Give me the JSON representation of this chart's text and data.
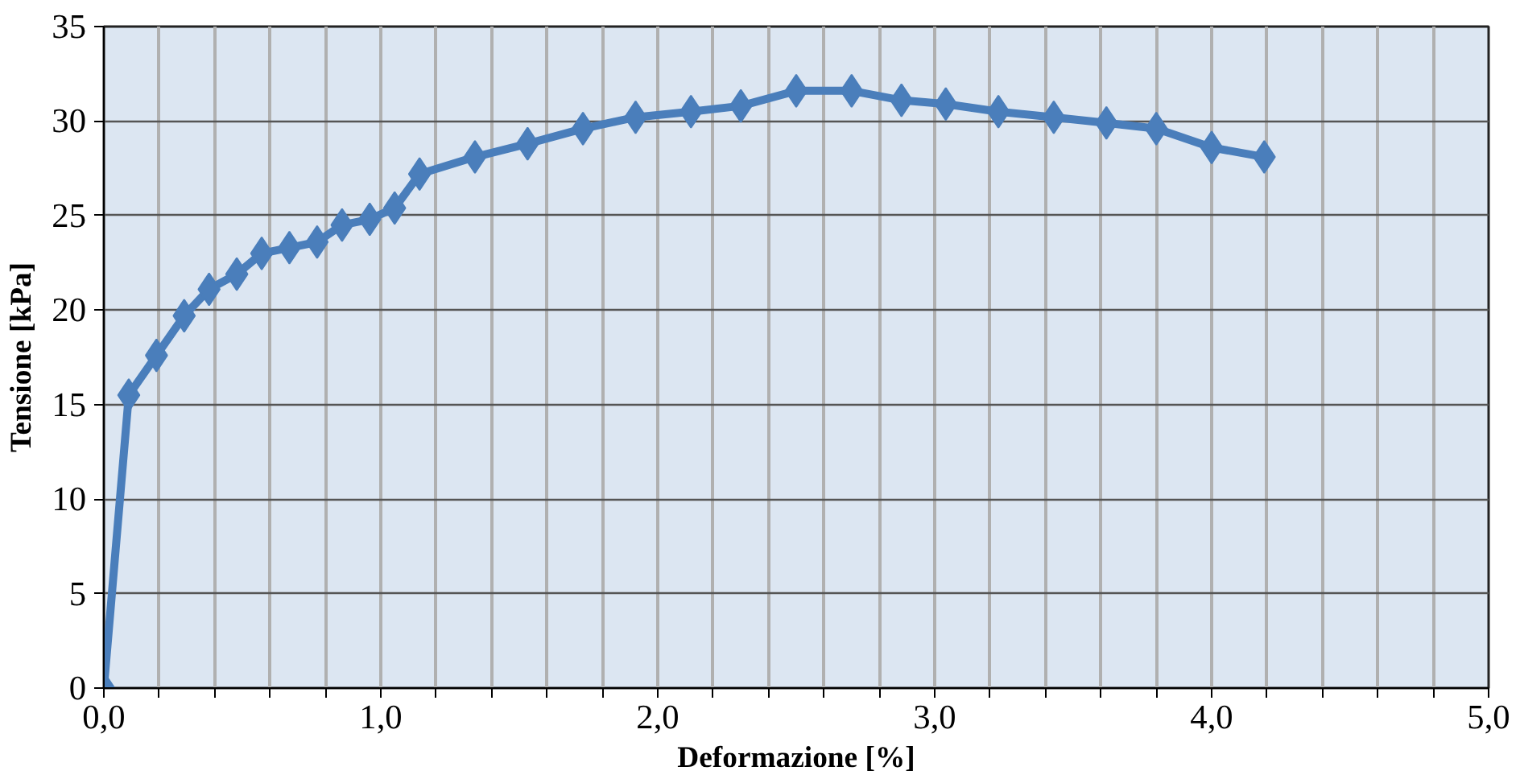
{
  "chart_data": {
    "type": "line",
    "xlabel": "Deformazione [%]",
    "ylabel": "Tensione [kPa]",
    "x": [
      0,
      0.09,
      0.19,
      0.29,
      0.38,
      0.48,
      0.57,
      0.67,
      0.77,
      0.86,
      0.96,
      1.05,
      1.14,
      1.34,
      1.53,
      1.73,
      1.92,
      2.12,
      2.3,
      2.5,
      2.7,
      2.88,
      3.04,
      3.23,
      3.43,
      3.62,
      3.8,
      4.0,
      4.19
    ],
    "series": [
      {
        "color": "#4a7ebb",
        "values": [
          0,
          15.5,
          17.6,
          19.7,
          21.1,
          21.9,
          23.0,
          23.3,
          23.6,
          24.5,
          24.8,
          25.4,
          27.2,
          28.1,
          28.8,
          29.6,
          30.2,
          30.5,
          30.8,
          31.6,
          31.6,
          31.1,
          30.9,
          30.5,
          30.2,
          29.9,
          29.6,
          28.6,
          28.1
        ]
      }
    ],
    "xlim": [
      0,
      5
    ],
    "ylim": [
      0,
      35
    ],
    "xticks": [
      {
        "value": 0,
        "label": "0,0"
      },
      {
        "value": 0.2,
        "label": null
      },
      {
        "value": 0.4,
        "label": null
      },
      {
        "value": 0.6,
        "label": null
      },
      {
        "value": 0.8,
        "label": null
      },
      {
        "value": 1,
        "label": "1,0"
      },
      {
        "value": 1.2,
        "label": null
      },
      {
        "value": 1.4,
        "label": null
      },
      {
        "value": 1.6,
        "label": null
      },
      {
        "value": 1.8,
        "label": null
      },
      {
        "value": 2,
        "label": "2,0"
      },
      {
        "value": 2.2,
        "label": null
      },
      {
        "value": 2.4,
        "label": null
      },
      {
        "value": 2.6,
        "label": null
      },
      {
        "value": 2.8,
        "label": null
      },
      {
        "value": 3,
        "label": "3,0"
      },
      {
        "value": 3.2,
        "label": null
      },
      {
        "value": 3.4,
        "label": null
      },
      {
        "value": 3.6,
        "label": null
      },
      {
        "value": 3.8,
        "label": null
      },
      {
        "value": 4,
        "label": "4,0"
      },
      {
        "value": 4.2,
        "label": null
      },
      {
        "value": 4.4,
        "label": null
      },
      {
        "value": 4.6,
        "label": null
      },
      {
        "value": 4.8,
        "label": null
      },
      {
        "value": 5,
        "label": "5,0"
      }
    ],
    "yticks": [
      0,
      5,
      10,
      15,
      20,
      25,
      30,
      35
    ],
    "grid": true,
    "marker": "diamond",
    "line_style": "solid"
  }
}
